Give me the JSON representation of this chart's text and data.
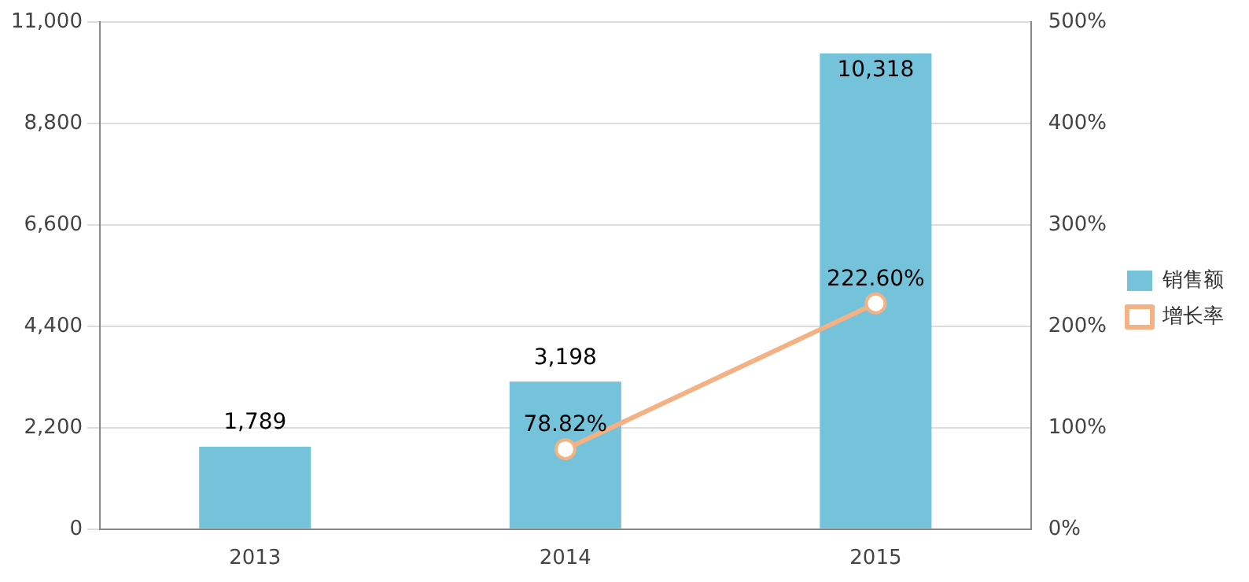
{
  "chart_data": {
    "type": "bar",
    "categories": [
      "2013",
      "2014",
      "2015"
    ],
    "series": [
      {
        "name": "销售额",
        "color": "#74c3db",
        "values": [
          1789,
          3198,
          10318
        ],
        "value_labels": [
          "1,789",
          "3,198",
          "10,318"
        ]
      },
      {
        "name": "增长率",
        "type": "line",
        "axis": "y2",
        "color": "#f4b183",
        "values": [
          null,
          78.82,
          222.6
        ],
        "value_labels": [
          null,
          "78.82%",
          "222.60%"
        ]
      }
    ],
    "ylim": [
      0,
      11000
    ],
    "yticks": [
      0,
      {
        "value": 2200,
        "label": "2,200"
      },
      {
        "value": 4400,
        "label": "4,400"
      },
      {
        "value": 6600,
        "label": "6,600"
      },
      {
        "value": 8800,
        "label": "8,800"
      },
      {
        "value": 11000,
        "label": "11,000"
      }
    ],
    "y2lim": [
      0,
      500
    ],
    "y2ticks": [
      {
        "value": 0,
        "label": "0%"
      },
      {
        "value": 100,
        "label": "100%"
      },
      {
        "value": 200,
        "label": "200%"
      },
      {
        "value": 300,
        "label": "300%"
      },
      {
        "value": 400,
        "label": "400%"
      },
      {
        "value": 500,
        "label": "500%"
      }
    ],
    "grid": "y",
    "legend": "right",
    "marker": "circle"
  }
}
